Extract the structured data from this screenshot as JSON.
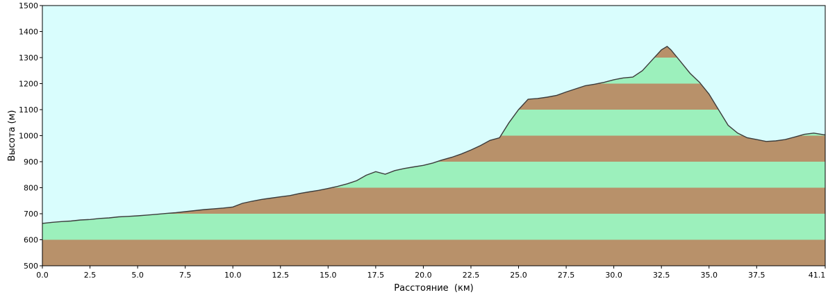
{
  "chart_data": {
    "type": "area",
    "xlabel": "Расстояние  (км)",
    "ylabel": "Высота (м)",
    "xlim": [
      0,
      41.1
    ],
    "ylim": [
      500,
      1500
    ],
    "x_ticks": [
      "0.0",
      "2.5",
      "5.0",
      "7.5",
      "10.0",
      "12.5",
      "15.0",
      "17.5",
      "20.0",
      "22.5",
      "25.0",
      "27.5",
      "30.0",
      "32.5",
      "35.0",
      "37.5",
      "41.1"
    ],
    "y_ticks": [
      "500",
      "600",
      "700",
      "800",
      "900",
      "1000",
      "1100",
      "1200",
      "1300",
      "1400",
      "1500"
    ],
    "band_interval": 100,
    "series": [
      {
        "x": [
          0.0,
          0.5,
          1.0,
          1.5,
          2.0,
          2.5,
          3.0,
          3.5,
          4.0,
          4.5,
          5.0,
          5.5,
          6.0,
          6.5,
          7.0,
          7.5,
          8.0,
          8.5,
          9.0,
          9.5,
          10.0,
          10.5,
          11.0,
          11.5,
          12.0,
          12.5,
          13.0,
          13.5,
          14.0,
          14.5,
          15.0,
          15.5,
          16.0,
          16.5,
          17.0,
          17.5,
          18.0,
          18.5,
          19.0,
          19.5,
          20.0,
          20.5,
          21.0,
          21.5,
          22.0,
          22.5,
          23.0,
          23.5,
          24.0,
          24.5,
          25.0,
          25.5,
          26.0,
          26.5,
          27.0,
          27.5,
          28.0,
          28.5,
          29.0,
          29.5,
          30.0,
          30.5,
          31.0,
          31.5,
          32.0,
          32.5,
          32.8,
          33.0,
          33.5,
          34.0,
          34.5,
          35.0,
          35.5,
          36.0,
          36.5,
          37.0,
          37.5,
          38.0,
          38.5,
          39.0,
          39.5,
          40.0,
          40.5,
          41.1
        ],
        "y": [
          663,
          667,
          670,
          672,
          676,
          678,
          682,
          684,
          688,
          690,
          692,
          695,
          698,
          701,
          704,
          708,
          712,
          716,
          719,
          722,
          726,
          740,
          748,
          755,
          760,
          765,
          770,
          778,
          784,
          790,
          797,
          805,
          815,
          827,
          848,
          862,
          852,
          866,
          874,
          880,
          886,
          895,
          907,
          917,
          930,
          945,
          962,
          982,
          992,
          1050,
          1100,
          1140,
          1143,
          1148,
          1155,
          1168,
          1180,
          1192,
          1198,
          1205,
          1215,
          1222,
          1225,
          1250,
          1290,
          1330,
          1343,
          1330,
          1285,
          1240,
          1205,
          1160,
          1100,
          1040,
          1010,
          992,
          985,
          978,
          980,
          985,
          995,
          1005,
          1010,
          1003
        ]
      }
    ],
    "colors": {
      "sky": "#d9fdfd",
      "band_green": "#9cf0bc",
      "band_brown": "#b8916a",
      "profile_line": "#3b3b3b",
      "axes": "#000000"
    },
    "grid": false
  }
}
